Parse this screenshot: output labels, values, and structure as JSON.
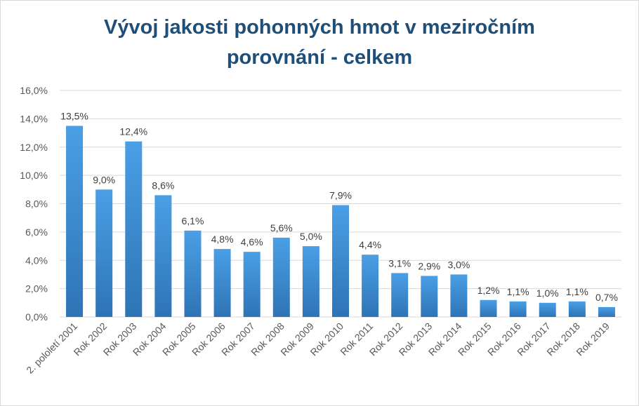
{
  "chart_data": {
    "type": "bar",
    "title_line1": "Vývoj jakosti pohonných hmot v meziročním",
    "title_line2": "porovnání - celkem",
    "xlabel": "",
    "ylabel": "",
    "ylim": [
      0,
      16
    ],
    "grid": true,
    "yticks": [
      "0,0%",
      "2,0%",
      "4,0%",
      "6,0%",
      "8,0%",
      "10,0%",
      "12,0%",
      "14,0%",
      "16,0%"
    ],
    "categories": [
      "2. pololetí 2001",
      "Rok 2002",
      "Rok 2003",
      "Rok 2004",
      "Rok 2005",
      "Rok 2006",
      "Rok 2007",
      "Rok 2008",
      "Rok 2009",
      "Rok 2010",
      "Rok 2011",
      "Rok 2012",
      "Rok 2013",
      "Rok 2014",
      "Rok 2015",
      "Rok 2016",
      "Rok 2017",
      "Rok 2018",
      "Rok 2019"
    ],
    "values": [
      13.5,
      9.0,
      12.4,
      8.6,
      6.1,
      4.8,
      4.6,
      5.6,
      5.0,
      7.9,
      4.4,
      3.1,
      2.9,
      3.0,
      1.2,
      1.1,
      1.0,
      1.1,
      0.7
    ],
    "labels": [
      "13,5%",
      "9,0%",
      "12,4%",
      "8,6%",
      "6,1%",
      "4,8%",
      "4,6%",
      "5,6%",
      "5,0%",
      "7,9%",
      "4,4%",
      "3,1%",
      "2,9%",
      "3,0%",
      "1,2%",
      "1,1%",
      "1,0%",
      "1,1%",
      "0,7%"
    ],
    "colors": {
      "bar_top": "#4a9fe6",
      "bar_bottom": "#2e74b5",
      "title": "#1f4e79",
      "grid": "#d9d9d9"
    }
  }
}
